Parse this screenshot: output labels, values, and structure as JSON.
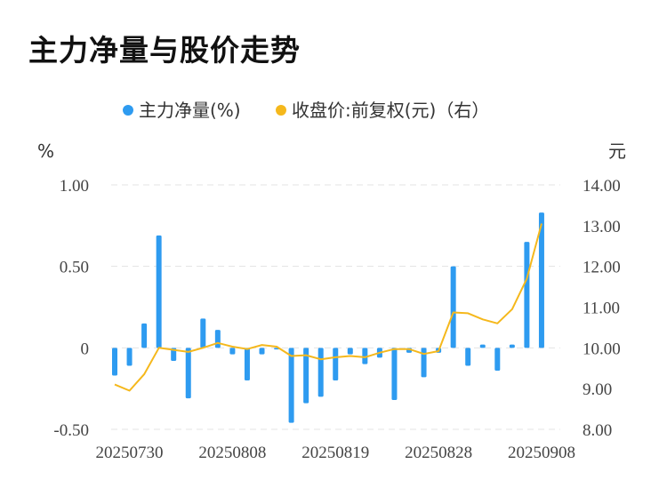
{
  "title": "主力净量与股价走势",
  "colors": {
    "bar": "#2e9bf0",
    "line": "#f5b81c",
    "grid": "#e3e3e3"
  },
  "chart_data": {
    "type": "bar+line",
    "legend": [
      {
        "label": "主力净量(%)",
        "type": "bar",
        "color": "#2e9bf0"
      },
      {
        "label": "收盘价:前复权(元)（右）",
        "type": "line",
        "color": "#f5b81c"
      }
    ],
    "legend_position": "top-center",
    "grid": "horizontal dashed",
    "left_axis": {
      "unit": "%",
      "ylim": [
        -0.5,
        1.0
      ],
      "ticks": [
        "1.00",
        "0.50",
        "0",
        "-0.50"
      ],
      "tick_values": [
        1.0,
        0.5,
        0,
        -0.5
      ]
    },
    "right_axis": {
      "unit": "元",
      "ylim": [
        8.0,
        14.0
      ],
      "ticks": [
        "14.00",
        "13.00",
        "12.00",
        "11.00",
        "10.00",
        "9.00",
        "8.00"
      ],
      "tick_values": [
        14,
        13,
        12,
        11,
        10,
        9,
        8
      ]
    },
    "x_ticks": [
      {
        "label": "20250730",
        "index": 1
      },
      {
        "label": "20250808",
        "index": 8
      },
      {
        "label": "20250819",
        "index": 15
      },
      {
        "label": "20250828",
        "index": 22
      },
      {
        "label": "20250908",
        "index": 29
      }
    ],
    "series": [
      {
        "name": "主力净量(%)",
        "axis": "left",
        "values": [
          -0.17,
          -0.11,
          0.15,
          0.69,
          -0.08,
          -0.31,
          0.18,
          0.11,
          -0.04,
          -0.2,
          -0.04,
          -0.01,
          -0.46,
          -0.34,
          -0.3,
          -0.2,
          -0.04,
          -0.1,
          -0.06,
          -0.32,
          -0.03,
          -0.18,
          -0.03,
          0.5,
          -0.11,
          0.02,
          -0.14,
          0.02,
          0.65,
          0.83
        ]
      },
      {
        "name": "收盘价:前复权(元)（右）",
        "axis": "right",
        "values": [
          9.1,
          8.95,
          9.35,
          10.0,
          9.95,
          9.9,
          10.0,
          10.12,
          10.03,
          9.97,
          10.07,
          10.03,
          9.8,
          9.82,
          9.72,
          9.77,
          9.8,
          9.77,
          9.88,
          9.97,
          9.97,
          9.85,
          9.92,
          10.87,
          10.85,
          10.7,
          10.6,
          10.95,
          11.7,
          13.05
        ]
      }
    ]
  }
}
